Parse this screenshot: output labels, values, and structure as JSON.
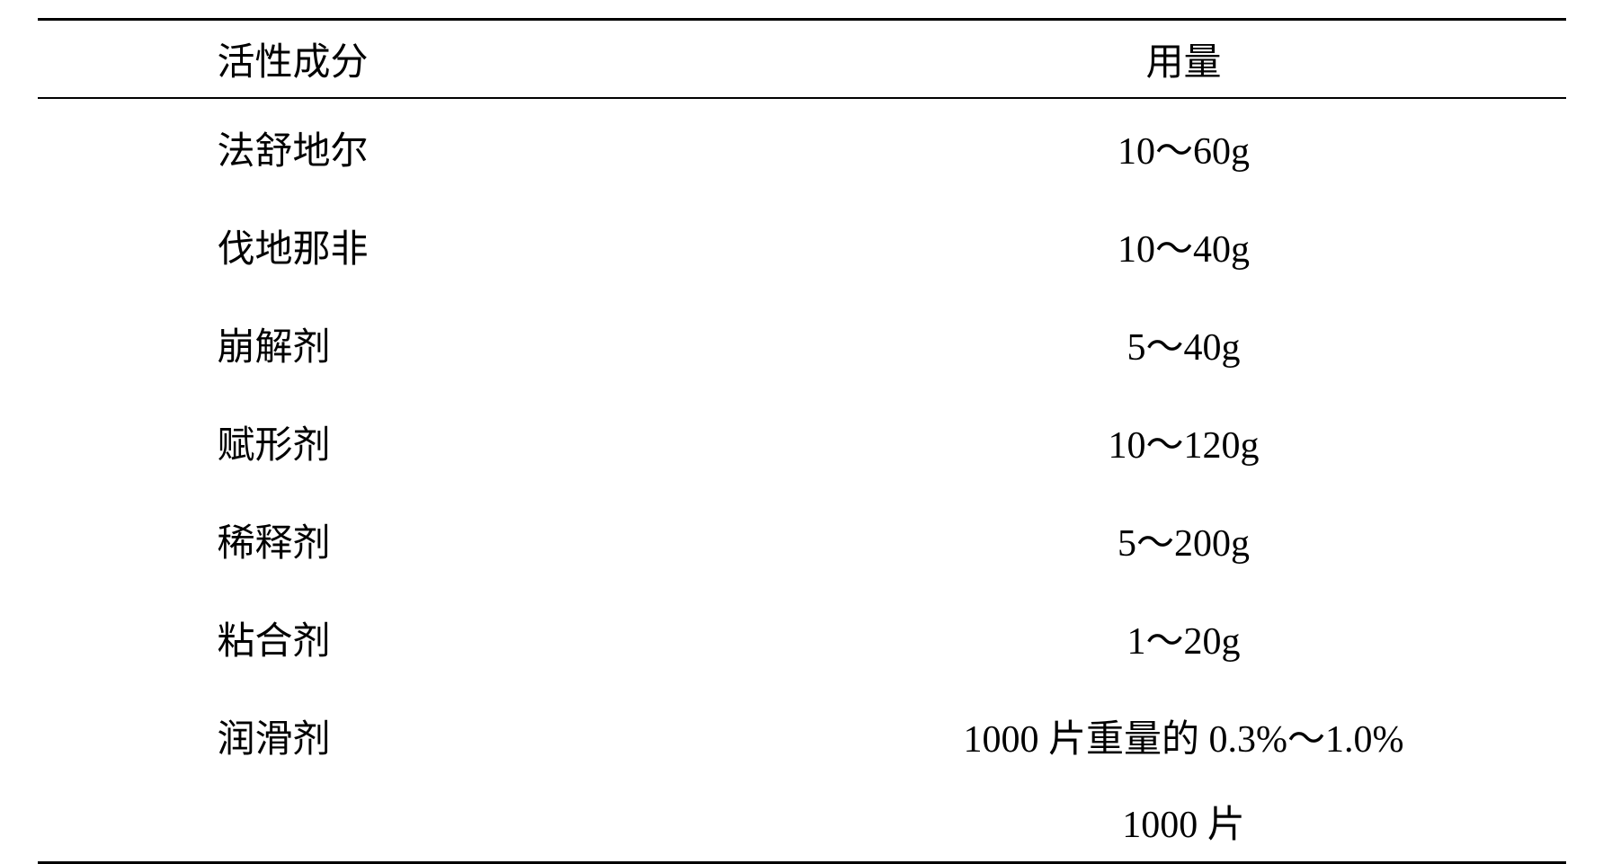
{
  "table": {
    "headers": {
      "ingredient": "活性成分",
      "dosage": "用量"
    },
    "rows": [
      {
        "ingredient": "法舒地尔",
        "dosage": "10～60g"
      },
      {
        "ingredient": "伐地那非",
        "dosage": "10～40g"
      },
      {
        "ingredient": "崩解剂",
        "dosage": "5～40g"
      },
      {
        "ingredient": "赋形剂",
        "dosage": "10～120g"
      },
      {
        "ingredient": "稀释剂",
        "dosage": "5～200g"
      },
      {
        "ingredient": "粘合剂",
        "dosage": "1～20g"
      },
      {
        "ingredient": "润滑剂",
        "dosage": "1000 片重量的 0.3%～1.0%"
      }
    ],
    "footer": "1000 片",
    "styling": {
      "font_family": "SimSun",
      "font_size_pt": 42,
      "text_color": "#000000",
      "background_color": "#ffffff",
      "border_color": "#000000",
      "border_top_width": 3,
      "header_border_bottom_width": 2,
      "border_bottom_width": 3,
      "row_padding_vertical": 24,
      "ingredient_padding_left": 200
    }
  }
}
